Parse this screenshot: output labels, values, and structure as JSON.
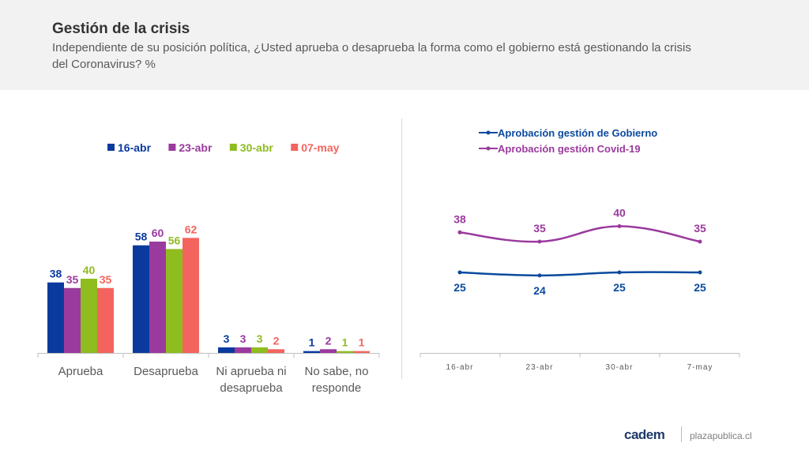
{
  "header": {
    "title": "Gestión de la crisis",
    "subtitle": "Independiente de su posición política, ¿Usted aprueba o desaprueba la forma como el gobierno está gestionando la crisis del Coronavirus? %"
  },
  "footer": {
    "logo": "cadem",
    "site": "plazapublica.cl"
  },
  "chart_data": [
    {
      "type": "bar",
      "categories": [
        "Aprueba",
        "Desaprueba",
        "Ni aprueba ni desaprueba",
        "No sabe, no responde"
      ],
      "category_lines": [
        [
          "Aprueba"
        ],
        [
          "Desaprueba"
        ],
        [
          "Ni aprueba ni",
          "desaprueba"
        ],
        [
          "No sabe, no",
          "responde"
        ]
      ],
      "series": [
        {
          "name": "16-abr",
          "color": "#0b3a9e",
          "values": [
            38,
            58,
            3,
            1
          ]
        },
        {
          "name": "23-abr",
          "color": "#9b3a9e",
          "values": [
            35,
            60,
            3,
            2
          ]
        },
        {
          "name": "30-abr",
          "color": "#8fbc1e",
          "values": [
            40,
            56,
            3,
            1
          ]
        },
        {
          "name": "07-may",
          "color": "#f4645e",
          "values": [
            35,
            62,
            2,
            1
          ]
        }
      ],
      "legend_position": "top",
      "ylim": [
        0,
        100
      ],
      "grid": false
    },
    {
      "type": "line",
      "x": [
        "16-abr",
        "23-abr",
        "30-abr",
        "7-may"
      ],
      "series": [
        {
          "name": "Aprobación gestión de Gobierno",
          "color": "#0b4a9e",
          "values": [
            25,
            24,
            25,
            25
          ],
          "label_position": "below"
        },
        {
          "name": "Aprobación gestión Covid-19",
          "color": "#9b3a9e",
          "values": [
            38,
            35,
            40,
            35
          ],
          "label_position": "above"
        }
      ],
      "legend_position": "top",
      "grid": false
    }
  ]
}
